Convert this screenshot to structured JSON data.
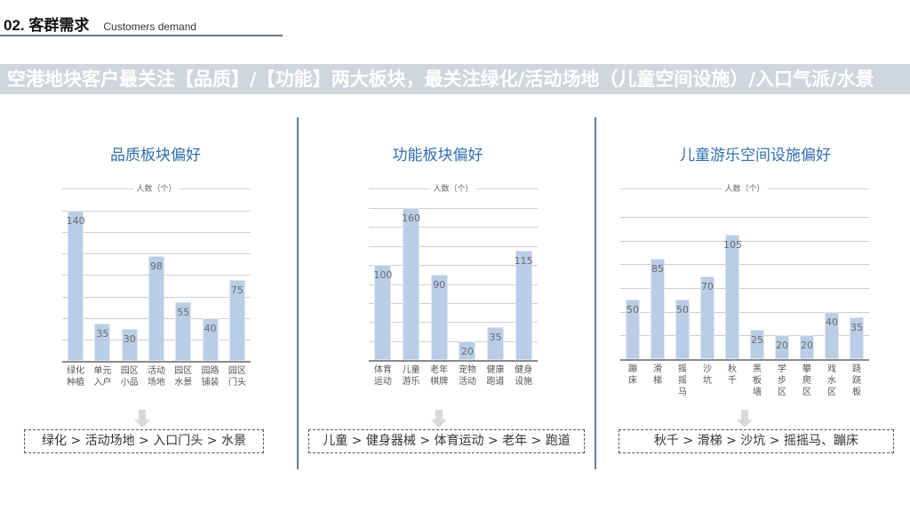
{
  "header": {
    "number_title": "02. 客群需求",
    "subtitle_en": "Customers demand"
  },
  "banner": {
    "text": "空港地块客户最关注【品质】/【功能】两大板块，最关注绿化/活动场地（儿童空间设施）/入口气派/水景"
  },
  "panels": [
    {
      "title": "品质板块偏好",
      "summary": "绿化 > 活动场地 > 入口门头 > 水景"
    },
    {
      "title": "功能板块偏好",
      "summary": "儿童 > 健身器械 > 体育运动 > 老年 > 跑道"
    },
    {
      "title": "儿童游乐空间设施偏好",
      "summary": "秋千 > 滑梯 > 沙坑 > 摇摇马、蹦床"
    }
  ],
  "colors": {
    "bar": "#b9cde6",
    "title": "#2f6fb0",
    "banner_bg": "#cfd6dd",
    "divider": "#5a7fa8"
  },
  "chart_data": [
    {
      "type": "bar",
      "title": "品质板块偏好",
      "ylabel": "人数（个）",
      "categories": [
        "绿化种植",
        "单元入户",
        "园区小品",
        "活动场地",
        "园区水景",
        "园路铺装",
        "园区门头"
      ],
      "category_lines": [
        [
          "绿化",
          "种植"
        ],
        [
          "单元",
          "入户"
        ],
        [
          "园区",
          "小品"
        ],
        [
          "活动",
          "场地"
        ],
        [
          "园区",
          "水景"
        ],
        [
          "园路",
          "铺装"
        ],
        [
          "园区",
          "门头"
        ]
      ],
      "values": [
        140,
        35,
        30,
        98,
        55,
        40,
        75
      ],
      "ylim": [
        0,
        140
      ],
      "grid_step": 20,
      "grid": true
    },
    {
      "type": "bar",
      "title": "功能板块偏好",
      "ylabel": "人数（个）",
      "categories": [
        "体育运动",
        "儿童游乐",
        "老年棋牌",
        "宠物活动",
        "健康跑道",
        "健身设施"
      ],
      "category_lines": [
        [
          "体育",
          "运动"
        ],
        [
          "儿童",
          "游乐"
        ],
        [
          "老年",
          "棋牌"
        ],
        [
          "宠物",
          "活动"
        ],
        [
          "健康",
          "跑道"
        ],
        [
          "健身",
          "设施"
        ]
      ],
      "values": [
        100,
        160,
        90,
        20,
        35,
        115
      ],
      "ylim": [
        0,
        160
      ],
      "grid_step": 20,
      "grid": true
    },
    {
      "type": "bar",
      "title": "儿童游乐空间设施偏好",
      "ylabel": "人数（个）",
      "categories": [
        "蹦床",
        "滑梯",
        "摇摇马",
        "沙坑",
        "秋千",
        "黑板墙",
        "学步区",
        "攀爬区",
        "戏水区",
        "跷跷板"
      ],
      "category_lines": [
        [
          "蹦",
          "床"
        ],
        [
          "滑",
          "梯"
        ],
        [
          "摇",
          "摇",
          "马"
        ],
        [
          "沙",
          "坑"
        ],
        [
          "秋",
          "千"
        ],
        [
          "黑",
          "板",
          "墙"
        ],
        [
          "学",
          "步",
          "区"
        ],
        [
          "攀",
          "爬",
          "区"
        ],
        [
          "戏",
          "水",
          "区"
        ],
        [
          "跷",
          "跷",
          "板"
        ]
      ],
      "values": [
        50,
        85,
        50,
        70,
        105,
        25,
        20,
        20,
        40,
        35
      ],
      "ylim": [
        0,
        120
      ],
      "grid_step": 20,
      "grid": true
    }
  ]
}
